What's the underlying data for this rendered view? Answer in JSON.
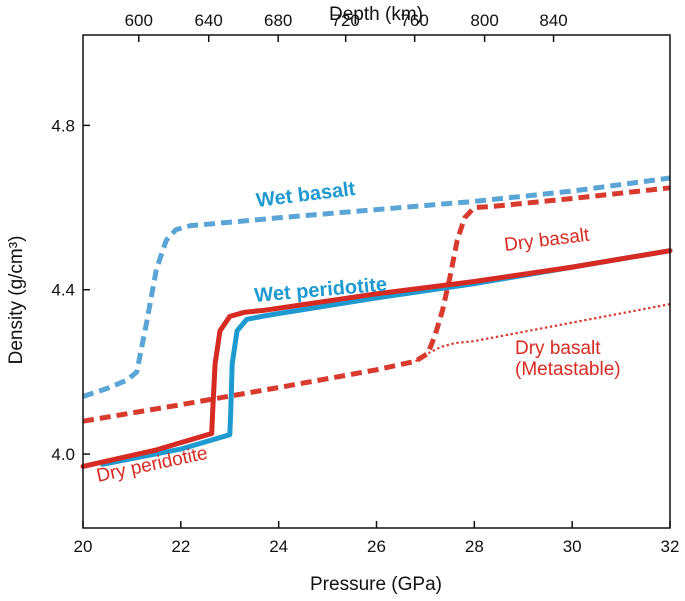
{
  "chart_data": {
    "type": "line",
    "xlabel": "Pressure (GPa)",
    "ylabel": "Density (g/cm³)",
    "x2label": "Depth (km)",
    "xlim": [
      20,
      32
    ],
    "ylim": [
      3.82,
      5.02
    ],
    "x_ticks": [
      20,
      22,
      24,
      26,
      28,
      30,
      32
    ],
    "x_tick_labels": [
      "20",
      "22",
      "24",
      "26",
      "28",
      "30",
      "32"
    ],
    "y_ticks": [
      4.0,
      4.4,
      4.8
    ],
    "y_tick_labels": [
      "4.0",
      "4.4",
      "4.8"
    ],
    "x2_ticks": [
      {
        "pressure": 21.14,
        "label": "600"
      },
      {
        "pressure": 22.57,
        "label": "640"
      },
      {
        "pressure": 23.99,
        "label": "680"
      },
      {
        "pressure": 25.37,
        "label": "720"
      },
      {
        "pressure": 26.78,
        "label": "760"
      },
      {
        "pressure": 28.21,
        "label": "800"
      },
      {
        "pressure": 29.62,
        "label": "840"
      }
    ],
    "grid": false,
    "series": [
      {
        "name": "Wet basalt",
        "style": "dashed-thick",
        "color": "#5aa5d6",
        "x": [
          20.0,
          20.5,
          20.9,
          21.1,
          21.3,
          21.5,
          21.7,
          21.9,
          22.2,
          22.6,
          24,
          26,
          28,
          30,
          32
        ],
        "y": [
          4.14,
          4.16,
          4.18,
          4.2,
          4.32,
          4.45,
          4.52,
          4.546,
          4.556,
          4.56,
          4.575,
          4.595,
          4.615,
          4.64,
          4.672
        ]
      },
      {
        "name": "Dry basalt",
        "style": "dashed-thick",
        "color": "#d83a2e",
        "x": [
          20.0,
          22,
          24,
          26,
          26.8,
          27.05,
          27.2,
          27.35,
          27.5,
          27.65,
          27.8,
          28.0,
          28.4,
          30,
          32
        ],
        "y": [
          4.08,
          4.12,
          4.162,
          4.205,
          4.226,
          4.245,
          4.29,
          4.35,
          4.43,
          4.52,
          4.575,
          4.6,
          4.603,
          4.622,
          4.648
        ]
      },
      {
        "name": "Dry basalt (Metastable)",
        "style": "dotted-thin",
        "color": "#d83a2e",
        "x": [
          26.8,
          27.05,
          27.3,
          27.6,
          28,
          30,
          32
        ],
        "y": [
          4.226,
          4.245,
          4.26,
          4.27,
          4.275,
          4.32,
          4.365
        ]
      },
      {
        "name": "Wet peridotite",
        "style": "solid",
        "color": "#1f9ad1",
        "x": [
          20.4,
          22,
          23.0,
          23.02,
          23.05,
          23.15,
          23.35,
          23.7,
          24,
          26,
          28,
          30,
          32
        ],
        "y": [
          3.975,
          4.012,
          4.047,
          4.1,
          4.22,
          4.3,
          4.328,
          4.336,
          4.342,
          4.38,
          4.415,
          4.455,
          4.495
        ]
      },
      {
        "name": "Dry peridotite",
        "style": "solid",
        "color": "#d62a22",
        "x": [
          20.0,
          21.5,
          22.63,
          22.65,
          22.7,
          22.8,
          23.0,
          23.3,
          23.7,
          24,
          26,
          28,
          30,
          32
        ],
        "y": [
          3.97,
          4.01,
          4.05,
          4.1,
          4.22,
          4.3,
          4.335,
          4.345,
          4.35,
          4.355,
          4.39,
          4.42,
          4.455,
          4.495
        ]
      }
    ],
    "annotations": [
      {
        "text": "Wet basalt",
        "color": "#1f9ad1",
        "weight": "bold"
      },
      {
        "text": "Dry basalt",
        "color": "#d62a22",
        "weight": "normal"
      },
      {
        "text": "Wet peridotite",
        "color": "#1f9ad1",
        "weight": "bold"
      },
      {
        "text": "Dry basalt",
        "color": "#d62a22",
        "weight": "normal"
      },
      {
        "text": "(Metastable)",
        "color": "#d62a22",
        "weight": "normal"
      },
      {
        "text": "Dry peridotite",
        "color": "#d62a22",
        "weight": "normal"
      }
    ]
  }
}
